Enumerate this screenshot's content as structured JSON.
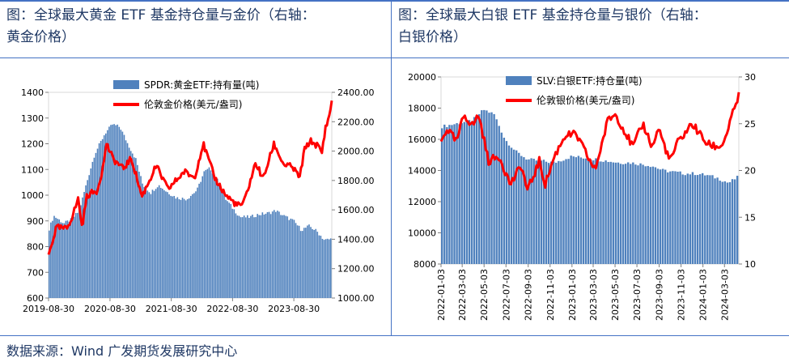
{
  "panels": {
    "left_title": "图：全球最大黄金 ETF 基金持仓量与金价（右轴：黄金价格）",
    "left_title_line1": "图：全球最大黄金 ETF 基金持仓量与金价（右轴：",
    "left_title_line2": "黄金价格）",
    "right_title_line1": "图：全球最大白银 ETF 基金持仓量与银价（右轴：",
    "right_title_line2": "白银价格）"
  },
  "footer": {
    "source": "数据来源：Wind 广发期货发展研究中心"
  },
  "colors": {
    "bar": "#4f81bd",
    "line": "#ff0000",
    "rule": "#4472c4"
  },
  "chart_data": [
    {
      "type": "bar+line",
      "title": "",
      "legend": [
        "SPDR:黄金ETF:持有量(吨)",
        "伦敦金价格(美元/盎司)"
      ],
      "legend_position": "top",
      "x_ticks": [
        "2019-08-30",
        "2020-08-30",
        "2021-08-30",
        "2022-08-30",
        "2023-08-30"
      ],
      "x_range": [
        "2019-08-30",
        "2024-04-12"
      ],
      "y_left": {
        "ticks": [
          "600",
          "700",
          "800",
          "900",
          "1000",
          "1100",
          "1200",
          "1300",
          "1400"
        ],
        "range": [
          600,
          1400
        ]
      },
      "y_right": {
        "ticks": [
          "1000.00",
          "1200.00",
          "1400.00",
          "1600.00",
          "1800.00",
          "2000.00",
          "2200.00",
          "2400.00"
        ],
        "range": [
          1000,
          2400
        ]
      },
      "series": [
        {
          "name": "SPDR:黄金ETF:持有量(吨)",
          "kind": "bar",
          "axis": "left",
          "points": [
            [
              "2019-08-30",
              860
            ],
            [
              "2019-10-01",
              920
            ],
            [
              "2019-12-01",
              890
            ],
            [
              "2020-01-15",
              905
            ],
            [
              "2020-03-01",
              940
            ],
            [
              "2020-04-15",
              1050
            ],
            [
              "2020-06-01",
              1160
            ],
            [
              "2020-08-01",
              1240
            ],
            [
              "2020-09-15",
              1275
            ],
            [
              "2020-10-30",
              1265
            ],
            [
              "2020-12-15",
              1200
            ],
            [
              "2021-02-01",
              1140
            ],
            [
              "2021-03-15",
              1040
            ],
            [
              "2021-05-01",
              1010
            ],
            [
              "2021-06-15",
              1040
            ],
            [
              "2021-08-01",
              1015
            ],
            [
              "2021-10-01",
              990
            ],
            [
              "2021-12-01",
              985
            ],
            [
              "2022-02-01",
              1020
            ],
            [
              "2022-03-15",
              1090
            ],
            [
              "2022-04-20",
              1105
            ],
            [
              "2022-06-01",
              1060
            ],
            [
              "2022-07-15",
              990
            ],
            [
              "2022-09-01",
              950
            ],
            [
              "2022-10-15",
              915
            ],
            [
              "2022-12-15",
              915
            ],
            [
              "2023-02-01",
              925
            ],
            [
              "2023-04-01",
              930
            ],
            [
              "2023-05-15",
              940
            ],
            [
              "2023-07-01",
              920
            ],
            [
              "2023-08-30",
              900
            ],
            [
              "2023-10-15",
              865
            ],
            [
              "2023-12-01",
              880
            ],
            [
              "2024-01-15",
              860
            ],
            [
              "2024-03-01",
              825
            ],
            [
              "2024-04-12",
              830
            ]
          ]
        },
        {
          "name": "伦敦金价格(美元/盎司)",
          "kind": "line",
          "axis": "right",
          "points": [
            [
              "2019-08-30",
              1290
            ],
            [
              "2019-10-15",
              1480
            ],
            [
              "2019-12-15",
              1470
            ],
            [
              "2020-01-20",
              1560
            ],
            [
              "2020-02-24",
              1680
            ],
            [
              "2020-03-16",
              1480
            ],
            [
              "2020-04-15",
              1700
            ],
            [
              "2020-06-15",
              1730
            ],
            [
              "2020-07-27",
              1930
            ],
            [
              "2020-08-06",
              2060
            ],
            [
              "2020-09-15",
              1950
            ],
            [
              "2020-11-15",
              1880
            ],
            [
              "2021-01-05",
              1950
            ],
            [
              "2021-03-08",
              1690
            ],
            [
              "2021-06-01",
              1900
            ],
            [
              "2021-08-10",
              1740
            ],
            [
              "2021-11-15",
              1860
            ],
            [
              "2022-01-15",
              1820
            ],
            [
              "2022-03-08",
              2050
            ],
            [
              "2022-05-15",
              1820
            ],
            [
              "2022-07-20",
              1700
            ],
            [
              "2022-09-28",
              1630
            ],
            [
              "2022-11-03",
              1640
            ],
            [
              "2023-01-15",
              1920
            ],
            [
              "2023-02-28",
              1810
            ],
            [
              "2023-05-04",
              2050
            ],
            [
              "2023-06-29",
              1910
            ],
            [
              "2023-08-21",
              1890
            ],
            [
              "2023-10-05",
              1820
            ],
            [
              "2023-10-30",
              2000
            ],
            [
              "2023-12-04",
              2070
            ],
            [
              "2024-01-15",
              2040
            ],
            [
              "2024-02-14",
              1990
            ],
            [
              "2024-03-08",
              2180
            ],
            [
              "2024-03-28",
              2230
            ],
            [
              "2024-04-12",
              2350
            ]
          ]
        }
      ]
    },
    {
      "type": "bar+line",
      "title": "",
      "legend": [
        "SLV:白银ETF:持仓量(吨)",
        "伦敦银价格(美元/盎司)"
      ],
      "legend_position": "top",
      "x_ticks": [
        "2022-01-03",
        "2022-03-03",
        "2022-05-03",
        "2022-07-03",
        "2022-09-03",
        "2022-11-03",
        "2023-01-03",
        "2023-03-03",
        "2023-05-03",
        "2023-07-03",
        "2023-09-03",
        "2023-11-03",
        "2024-01-03",
        "2024-03-03"
      ],
      "x_range": [
        "2022-01-03",
        "2024-04-12"
      ],
      "y_left": {
        "ticks": [
          "8000",
          "10000",
          "12000",
          "14000",
          "16000",
          "18000",
          "20000"
        ],
        "range": [
          8000,
          20000
        ]
      },
      "y_right": {
        "ticks": [
          "10",
          "15",
          "20",
          "25",
          "30"
        ],
        "range": [
          10,
          30
        ]
      },
      "series": [
        {
          "name": "SLV:白银ETF:持仓量(吨)",
          "kind": "bar",
          "axis": "left",
          "points": [
            [
              "2022-01-03",
              16800
            ],
            [
              "2022-02-15",
              17000
            ],
            [
              "2022-04-01",
              17200
            ],
            [
              "2022-05-03",
              17900
            ],
            [
              "2022-06-01",
              17600
            ],
            [
              "2022-07-01",
              16000
            ],
            [
              "2022-08-01",
              15200
            ],
            [
              "2022-09-03",
              14700
            ],
            [
              "2022-10-15",
              14600
            ],
            [
              "2022-11-15",
              14500
            ],
            [
              "2023-01-03",
              14900
            ],
            [
              "2023-02-15",
              14800
            ],
            [
              "2023-03-15",
              14700
            ],
            [
              "2023-04-15",
              14600
            ],
            [
              "2023-05-15",
              14500
            ],
            [
              "2023-06-15",
              14500
            ],
            [
              "2023-07-15",
              14400
            ],
            [
              "2023-08-15",
              14300
            ],
            [
              "2023-09-15",
              14000
            ],
            [
              "2023-10-15",
              13900
            ],
            [
              "2023-11-15",
              13800
            ],
            [
              "2023-12-15",
              13800
            ],
            [
              "2024-01-15",
              13700
            ],
            [
              "2024-02-15",
              13500
            ],
            [
              "2024-03-15",
              13200
            ],
            [
              "2024-04-12",
              13600
            ]
          ]
        },
        {
          "name": "伦敦银价格(美元/盎司)",
          "kind": "line",
          "axis": "right",
          "points": [
            [
              "2022-01-03",
              23.0
            ],
            [
              "2022-01-20",
              24.5
            ],
            [
              "2022-02-15",
              23.0
            ],
            [
              "2022-03-08",
              26.0
            ],
            [
              "2022-04-01",
              24.8
            ],
            [
              "2022-04-18",
              26.0
            ],
            [
              "2022-05-15",
              21.0
            ],
            [
              "2022-06-15",
              21.5
            ],
            [
              "2022-07-15",
              18.5
            ],
            [
              "2022-08-15",
              20.5
            ],
            [
              "2022-09-01",
              17.8
            ],
            [
              "2022-10-04",
              21.0
            ],
            [
              "2022-10-20",
              18.5
            ],
            [
              "2022-11-15",
              21.5
            ],
            [
              "2022-12-15",
              23.8
            ],
            [
              "2023-01-15",
              23.8
            ],
            [
              "2023-03-08",
              20.0
            ],
            [
              "2023-04-14",
              25.5
            ],
            [
              "2023-05-05",
              26.0
            ],
            [
              "2023-06-22",
              22.5
            ],
            [
              "2023-07-20",
              25.0
            ],
            [
              "2023-08-15",
              22.5
            ],
            [
              "2023-09-01",
              24.5
            ],
            [
              "2023-10-03",
              21.0
            ],
            [
              "2023-10-25",
              23.0
            ],
            [
              "2023-12-04",
              25.0
            ],
            [
              "2024-01-15",
              22.8
            ],
            [
              "2024-02-15",
              22.5
            ],
            [
              "2024-03-01",
              23.0
            ],
            [
              "2024-03-20",
              25.3
            ],
            [
              "2024-04-03",
              27.0
            ],
            [
              "2024-04-12",
              28.0
            ]
          ]
        }
      ]
    }
  ]
}
